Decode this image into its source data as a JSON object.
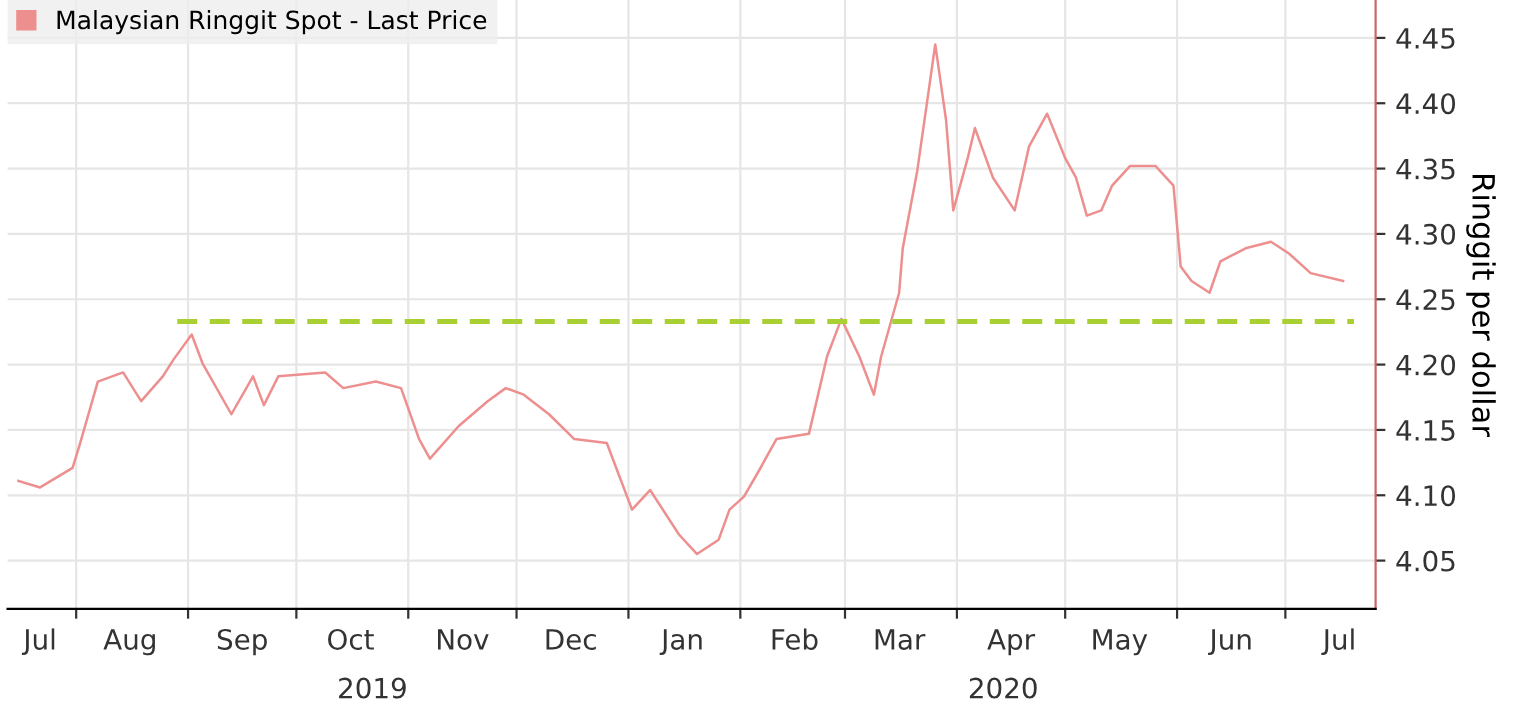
{
  "chart_data": {
    "type": "line",
    "ylabel": "Ringgit per dollar",
    "legend": "top left",
    "grid": true,
    "line_style": "solid",
    "marker": "none",
    "x": [
      "2019-07-16",
      "2019-07-22",
      "2019-07-31",
      "2019-08-02",
      "2019-08-07",
      "2019-08-14",
      "2019-08-19",
      "2019-08-25",
      "2019-08-28",
      "2019-09-02",
      "2019-09-05",
      "2019-09-13",
      "2019-09-19",
      "2019-09-22",
      "2019-09-26",
      "2019-10-09",
      "2019-10-14",
      "2019-10-23",
      "2019-10-30",
      "2019-11-04",
      "2019-11-07",
      "2019-11-15",
      "2019-11-23",
      "2019-11-28",
      "2019-12-03",
      "2019-12-10",
      "2019-12-17",
      "2019-12-26",
      "2020-01-02",
      "2020-01-07",
      "2020-01-15",
      "2020-01-20",
      "2020-01-26",
      "2020-01-29",
      "2020-02-02",
      "2020-02-06",
      "2020-02-11",
      "2020-02-20",
      "2020-02-25",
      "2020-02-29",
      "2020-03-05",
      "2020-03-09",
      "2020-03-11",
      "2020-03-16",
      "2020-03-17",
      "2020-03-21",
      "2020-03-24",
      "2020-03-26",
      "2020-03-29",
      "2020-03-31",
      "2020-04-04",
      "2020-04-06",
      "2020-04-11",
      "2020-04-17",
      "2020-04-21",
      "2020-04-26",
      "2020-05-01",
      "2020-05-04",
      "2020-05-07",
      "2020-05-11",
      "2020-05-14",
      "2020-05-19",
      "2020-05-26",
      "2020-05-31",
      "2020-06-02",
      "2020-06-05",
      "2020-06-10",
      "2020-06-13",
      "2020-06-20",
      "2020-06-27",
      "2020-07-02",
      "2020-07-08",
      "2020-07-17"
    ],
    "series": [
      {
        "name": "Malaysian Ringgit Spot - Last Price",
        "color": "#ee8f8f",
        "values": [
          4.111,
          4.106,
          4.121,
          4.139,
          4.187,
          4.194,
          4.172,
          4.191,
          4.204,
          4.223,
          4.201,
          4.162,
          4.191,
          4.169,
          4.191,
          4.194,
          4.182,
          4.187,
          4.182,
          4.143,
          4.128,
          4.153,
          4.172,
          4.182,
          4.177,
          4.162,
          4.143,
          4.14,
          4.089,
          4.104,
          4.07,
          4.055,
          4.066,
          4.089,
          4.099,
          4.118,
          4.143,
          4.147,
          4.206,
          4.235,
          4.206,
          4.177,
          4.206,
          4.255,
          4.289,
          4.348,
          4.406,
          4.445,
          4.387,
          4.318,
          4.358,
          4.381,
          4.343,
          4.318,
          4.367,
          4.392,
          4.358,
          4.343,
          4.314,
          4.318,
          4.337,
          4.352,
          4.352,
          4.337,
          4.275,
          4.264,
          4.255,
          4.279,
          4.289,
          4.294,
          4.285,
          4.27,
          4.264
        ]
      },
      {
        "type": "line",
        "x": [
          "2019-08-29",
          "2020-07-20"
        ],
        "color": "#a8d032",
        "line_style": "dashed",
        "values": [
          4.233,
          4.233
        ]
      }
    ],
    "xlim": [
      "2019-07-13",
      "2020-07-26"
    ],
    "xticks": [
      {
        "value": "2019-07-22",
        "label": "Jul"
      },
      {
        "value": "2019-08-01",
        "label": null
      },
      {
        "value": "2019-08-16",
        "label": "Aug"
      },
      {
        "value": "2019-09-01",
        "label": null
      },
      {
        "value": "2019-09-16",
        "label": "Sep"
      },
      {
        "value": "2019-10-01",
        "label": null
      },
      {
        "value": "2019-10-16",
        "label": "Oct"
      },
      {
        "value": "2019-11-01",
        "label": null
      },
      {
        "value": "2019-11-16",
        "label": "Nov"
      },
      {
        "value": "2019-12-01",
        "label": null
      },
      {
        "value": "2019-12-16",
        "label": "Dec"
      },
      {
        "value": "2020-01-01",
        "label": null
      },
      {
        "value": "2020-01-16",
        "label": "Jan"
      },
      {
        "value": "2020-02-01",
        "label": null
      },
      {
        "value": "2020-02-16",
        "label": "Feb"
      },
      {
        "value": "2020-03-01",
        "label": null
      },
      {
        "value": "2020-03-16",
        "label": "Mar"
      },
      {
        "value": "2020-04-01",
        "label": null
      },
      {
        "value": "2020-04-16",
        "label": "Apr"
      },
      {
        "value": "2020-05-01",
        "label": null
      },
      {
        "value": "2020-05-16",
        "label": "May"
      },
      {
        "value": "2020-06-01",
        "label": null
      },
      {
        "value": "2020-06-16",
        "label": "Jun"
      },
      {
        "value": "2020-07-01",
        "label": null
      },
      {
        "value": "2020-07-16",
        "label": "Jul"
      }
    ],
    "ylim": [
      4.013,
      4.479
    ],
    "yticks": [
      4.05,
      {
        "value": 4.1,
        "label": "4.10"
      },
      4.15,
      {
        "value": 4.2,
        "label": "4.20"
      },
      4.25,
      {
        "value": 4.3,
        "label": "4.30"
      },
      4.35,
      {
        "value": 4.4,
        "label": "4.40"
      },
      4.45
    ],
    "annotations": [
      "2019",
      "2020"
    ]
  }
}
